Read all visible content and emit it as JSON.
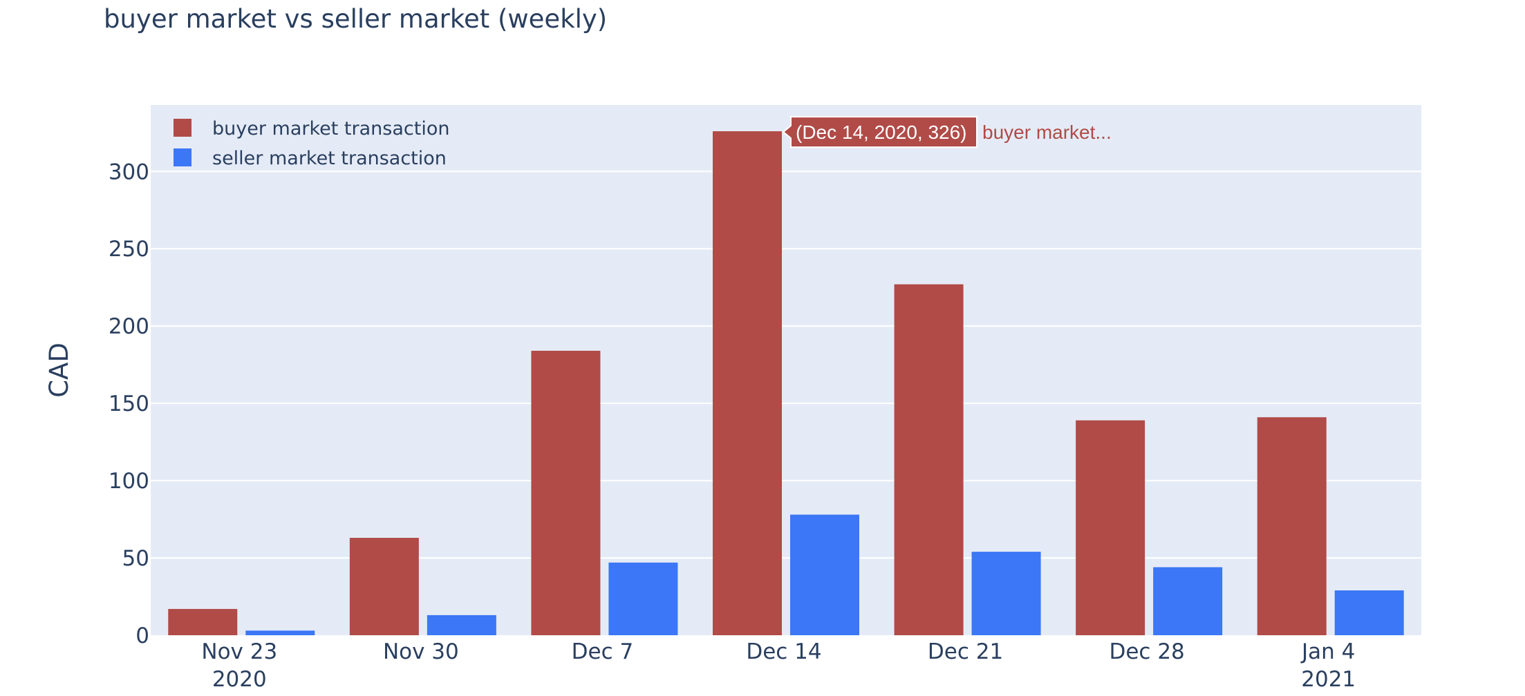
{
  "chart_data": {
    "type": "bar",
    "title": "buyer market vs seller market (weekly)",
    "xlabel": "",
    "ylabel": "CAD",
    "categories": [
      "Nov 23\n2020",
      "Nov 30",
      "Dec 7",
      "Dec 14",
      "Dec 21",
      "Dec 28",
      "Jan 4\n2021"
    ],
    "series": [
      {
        "name": "buyer market transaction",
        "color": "#b04b47",
        "values": [
          17,
          63,
          184,
          326,
          227,
          139,
          141
        ]
      },
      {
        "name": "seller market transaction",
        "color": "#3b77f6",
        "values": [
          3,
          13,
          47,
          78,
          54,
          44,
          29
        ]
      }
    ],
    "ylim": [
      0,
      343
    ],
    "yticks": [
      0,
      50,
      100,
      150,
      200,
      250,
      300
    ],
    "grid": true,
    "legend_position": "top-left",
    "plot_background": "#e5ebf6",
    "hover": {
      "category_index": 3,
      "series_index": 0,
      "label": "(Dec 14, 2020, 326)",
      "name": "buyer market..."
    }
  }
}
